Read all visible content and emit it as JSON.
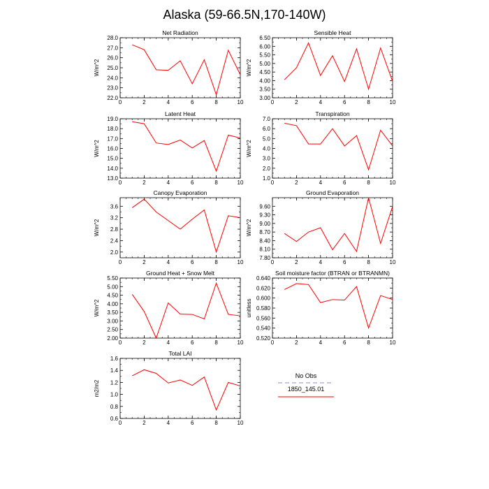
{
  "figure_title": "Alaska (59-66.5N,170-140W)",
  "legend": {
    "items": [
      {
        "label": "No Obs",
        "color": "#8a8ad8",
        "dash": true
      },
      {
        "label": "1850_145.01",
        "color": "#ff0000",
        "dash": false
      }
    ]
  },
  "chart_data": [
    {
      "type": "line",
      "title": "Net Radiation",
      "ylabel": "W/m^2",
      "xlim": [
        0,
        10
      ],
      "ylim": [
        22.0,
        28.0
      ],
      "xticks": [
        0,
        2,
        4,
        6,
        8,
        10
      ],
      "yticks": [
        22.0,
        23.0,
        24.0,
        25.0,
        26.0,
        27.0,
        28.0
      ],
      "ytick_labels": [
        "22.0",
        "23.0",
        "24.0",
        "25.0",
        "26.0",
        "27.0",
        "28.0"
      ],
      "series": [
        {
          "color": "#ff0000",
          "x": [
            1,
            2,
            3,
            4,
            5,
            6,
            7,
            8,
            9,
            10
          ],
          "values": [
            27.3,
            26.8,
            24.8,
            24.75,
            25.7,
            23.4,
            25.8,
            22.3,
            26.75,
            24.3
          ]
        }
      ]
    },
    {
      "type": "line",
      "title": "Sensible Heat",
      "ylabel": "W/m^2",
      "xlim": [
        0,
        10
      ],
      "ylim": [
        3.0,
        6.5
      ],
      "xticks": [
        0,
        2,
        4,
        6,
        8,
        10
      ],
      "yticks": [
        3.0,
        3.5,
        4.0,
        4.5,
        5.0,
        5.5,
        6.0,
        6.5
      ],
      "ytick_labels": [
        "3.00",
        "3.50",
        "4.00",
        "4.50",
        "5.00",
        "5.50",
        "6.00",
        "6.50"
      ],
      "series": [
        {
          "color": "#ff0000",
          "x": [
            1,
            2,
            3,
            4,
            5,
            6,
            7,
            8,
            9,
            10
          ],
          "values": [
            4.05,
            4.75,
            6.2,
            4.3,
            5.45,
            3.95,
            5.85,
            3.5,
            5.9,
            3.95
          ]
        }
      ]
    },
    {
      "type": "line",
      "title": "Latent Heat",
      "ylabel": "W/m^2",
      "xlim": [
        0,
        10
      ],
      "ylim": [
        13.0,
        19.0
      ],
      "xticks": [
        0,
        2,
        4,
        6,
        8,
        10
      ],
      "yticks": [
        13.0,
        14.0,
        15.0,
        16.0,
        17.0,
        18.0,
        19.0
      ],
      "ytick_labels": [
        "13.0",
        "14.0",
        "15.0",
        "16.0",
        "17.0",
        "18.0",
        "19.0"
      ],
      "series": [
        {
          "color": "#ff0000",
          "x": [
            1,
            2,
            3,
            4,
            5,
            6,
            7,
            8,
            9,
            10
          ],
          "values": [
            18.7,
            18.5,
            16.55,
            16.4,
            16.85,
            16.05,
            16.8,
            13.7,
            17.35,
            17.05
          ]
        }
      ]
    },
    {
      "type": "line",
      "title": "Transpiration",
      "ylabel": "W/m^2",
      "xlim": [
        0,
        10
      ],
      "ylim": [
        1.0,
        7.0
      ],
      "xticks": [
        0,
        2,
        4,
        6,
        8,
        10
      ],
      "yticks": [
        1.0,
        2.0,
        3.0,
        4.0,
        5.0,
        6.0,
        7.0
      ],
      "ytick_labels": [
        "1.0",
        "2.0",
        "3.0",
        "4.0",
        "5.0",
        "6.0",
        "7.0"
      ],
      "series": [
        {
          "color": "#ff0000",
          "x": [
            1,
            2,
            3,
            4,
            5,
            6,
            7,
            8,
            9,
            10
          ],
          "values": [
            6.55,
            6.3,
            4.45,
            4.45,
            6.0,
            4.25,
            5.3,
            1.85,
            5.85,
            4.25
          ]
        }
      ]
    },
    {
      "type": "line",
      "title": "Canopy Evaporation",
      "ylabel": "W/m^2",
      "xlim": [
        0,
        10
      ],
      "ylim": [
        1.8,
        3.9
      ],
      "xticks": [
        0,
        2,
        4,
        6,
        8,
        10
      ],
      "yticks": [
        2.0,
        2.4,
        2.8,
        3.2,
        3.6
      ],
      "ytick_labels": [
        "2.0",
        "2.4",
        "2.8",
        "3.2",
        "3.6"
      ],
      "series": [
        {
          "color": "#ff0000",
          "x": [
            1,
            2,
            3,
            4,
            5,
            6,
            7,
            8,
            9,
            10
          ],
          "values": [
            3.55,
            3.85,
            3.4,
            3.1,
            2.8,
            3.15,
            3.47,
            2.0,
            3.27,
            3.2
          ]
        }
      ]
    },
    {
      "type": "line",
      "title": "Ground Evaporation",
      "ylabel": "W/m^2",
      "xlim": [
        0,
        10
      ],
      "ylim": [
        7.8,
        9.9
      ],
      "xticks": [
        0,
        2,
        4,
        6,
        8,
        10
      ],
      "yticks": [
        7.8,
        8.1,
        8.4,
        8.7,
        9.0,
        9.3,
        9.6
      ],
      "ytick_labels": [
        "7.80",
        "8.10",
        "8.40",
        "8.70",
        "9.00",
        "9.30",
        "9.60"
      ],
      "series": [
        {
          "color": "#ff0000",
          "x": [
            1,
            2,
            3,
            4,
            5,
            6,
            7,
            8,
            9,
            10
          ],
          "values": [
            8.65,
            8.37,
            8.7,
            8.85,
            8.08,
            8.65,
            8.02,
            9.9,
            8.3,
            9.6
          ]
        }
      ]
    },
    {
      "type": "line",
      "title": "Ground Heat + Snow Melt",
      "ylabel": "W/m^2",
      "xlim": [
        0,
        10
      ],
      "ylim": [
        2.0,
        5.5
      ],
      "xticks": [
        0,
        2,
        4,
        6,
        8,
        10
      ],
      "yticks": [
        2.0,
        2.5,
        3.0,
        3.5,
        4.0,
        4.5,
        5.0,
        5.5
      ],
      "ytick_labels": [
        "2.00",
        "2.50",
        "3.00",
        "3.50",
        "4.00",
        "4.50",
        "5.00",
        "5.50"
      ],
      "series": [
        {
          "color": "#ff0000",
          "x": [
            1,
            2,
            3,
            4,
            5,
            6,
            7,
            8,
            9,
            10
          ],
          "values": [
            4.55,
            3.55,
            2.0,
            4.05,
            3.4,
            3.38,
            3.12,
            5.2,
            3.38,
            3.3
          ]
        }
      ]
    },
    {
      "type": "line",
      "title": "Soil moisture factor (BTRAN or BTRANMN)",
      "ylabel": "unitless",
      "xlim": [
        0,
        10
      ],
      "ylim": [
        0.52,
        0.64
      ],
      "xticks": [
        0,
        2,
        4,
        6,
        8,
        10
      ],
      "yticks": [
        0.52,
        0.54,
        0.56,
        0.58,
        0.6,
        0.62,
        0.64
      ],
      "ytick_labels": [
        "0.520",
        "0.540",
        "0.560",
        "0.580",
        "0.600",
        "0.620",
        "0.640"
      ],
      "series": [
        {
          "color": "#ff0000",
          "x": [
            1,
            2,
            3,
            4,
            5,
            6,
            7,
            8,
            9,
            10
          ],
          "values": [
            0.617,
            0.629,
            0.627,
            0.591,
            0.597,
            0.596,
            0.623,
            0.54,
            0.605,
            0.597
          ]
        }
      ]
    },
    {
      "type": "line",
      "title": "Total LAI",
      "ylabel": "m2/m2",
      "xlim": [
        0,
        10
      ],
      "ylim": [
        0.6,
        1.6
      ],
      "xticks": [
        0,
        2,
        4,
        6,
        8,
        10
      ],
      "yticks": [
        0.6,
        0.8,
        1.0,
        1.2,
        1.4,
        1.6
      ],
      "ytick_labels": [
        "0.6",
        "0.8",
        "1.0",
        "1.2",
        "1.4",
        "1.6"
      ],
      "series": [
        {
          "color": "#ff0000",
          "x": [
            1,
            2,
            3,
            4,
            5,
            6,
            7,
            8,
            9,
            10
          ],
          "values": [
            1.31,
            1.41,
            1.35,
            1.19,
            1.24,
            1.15,
            1.29,
            0.74,
            1.2,
            1.14
          ]
        }
      ]
    }
  ]
}
